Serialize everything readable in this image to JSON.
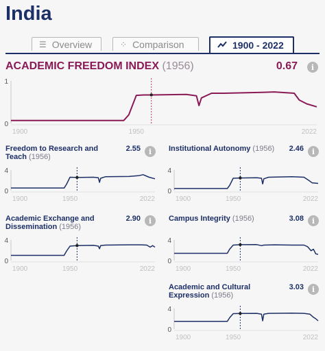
{
  "country": "India",
  "tabs": [
    {
      "label": "Overview",
      "icon": "list-icon"
    },
    {
      "label": "Comparison",
      "icon": "scatter-icon"
    },
    {
      "label": "1900 - 2022",
      "icon": "line-chart-icon"
    }
  ],
  "colors": {
    "main": "#8a1a55",
    "sub": "#1c2f66",
    "marker": "#c0306e"
  },
  "main": {
    "title": "ACADEMIC FREEDOM INDEX",
    "year": "(1956)",
    "value": "0.67",
    "info": "i"
  },
  "subs": [
    {
      "title": "Freedom to Research and Teach",
      "year": "(1956)",
      "value": "2.55",
      "info": "i"
    },
    {
      "title": "Institutional Autonomy",
      "year": "(1956)",
      "value": "2.46",
      "info": "i"
    },
    {
      "title": "Academic Exchange and Dissemination",
      "year": "(1956)",
      "value": "2.90",
      "info": "i"
    },
    {
      "title": "Campus Integrity",
      "year": "(1956)",
      "value": "3.08",
      "info": "i"
    },
    {
      "title": "Academic and Cultural Expression",
      "year": "(1956)",
      "value": "3.03",
      "info": "i"
    }
  ],
  "chart_data": [
    {
      "type": "line",
      "title": "ACADEMIC FREEDOM INDEX (1956)",
      "ylim": [
        0,
        1
      ],
      "yticks": [
        "0",
        "1"
      ],
      "xticks": [
        "1900",
        "1950",
        "2022"
      ],
      "marker_year": 1956,
      "x": [
        1900,
        1945,
        1947,
        1950,
        1953,
        1956,
        1970,
        1974,
        1975,
        1976,
        1980,
        1985,
        2000,
        2005,
        2013,
        2015,
        2018,
        2022
      ],
      "y": [
        0.07,
        0.07,
        0.2,
        0.66,
        0.67,
        0.67,
        0.68,
        0.65,
        0.42,
        0.6,
        0.71,
        0.71,
        0.73,
        0.74,
        0.71,
        0.55,
        0.46,
        0.39
      ]
    },
    {
      "type": "line",
      "title": "Freedom to Research and Teach (1956)",
      "ylim": [
        0,
        4
      ],
      "yticks": [
        "0",
        "4"
      ],
      "xticks": [
        "1900",
        "1950",
        "2022"
      ],
      "marker_year": 1956,
      "x": [
        1900,
        1945,
        1947,
        1950,
        1956,
        1970,
        1974,
        1975,
        1976,
        1980,
        2000,
        2008,
        2012,
        2017,
        2022
      ],
      "y": [
        0.5,
        0.5,
        1.2,
        2.6,
        2.55,
        2.6,
        2.5,
        1.6,
        2.4,
        2.7,
        2.75,
        2.9,
        3.1,
        2.6,
        2.3
      ]
    },
    {
      "type": "line",
      "title": "Institutional Autonomy (1956)",
      "ylim": [
        0,
        4
      ],
      "yticks": [
        "0",
        "4"
      ],
      "xticks": [
        "1900",
        "1950",
        "2022"
      ],
      "marker_year": 1956,
      "x": [
        1900,
        1945,
        1947,
        1950,
        1956,
        1970,
        1974,
        1975,
        1976,
        1980,
        2000,
        2010,
        2014,
        2017,
        2022
      ],
      "y": [
        0.4,
        0.4,
        1.0,
        2.4,
        2.46,
        2.5,
        2.4,
        1.3,
        2.3,
        2.6,
        2.7,
        2.6,
        2.0,
        1.5,
        1.4
      ]
    },
    {
      "type": "line",
      "title": "Academic Exchange and Dissemination (1956)",
      "ylim": [
        0,
        4
      ],
      "yticks": [
        "0",
        "4"
      ],
      "xticks": [
        "1900",
        "1950",
        "2022"
      ],
      "marker_year": 1956,
      "x": [
        1900,
        1945,
        1947,
        1950,
        1956,
        1970,
        1974,
        1975,
        1976,
        1980,
        2000,
        2010,
        2015,
        2018,
        2020,
        2022
      ],
      "y": [
        1.0,
        1.0,
        1.8,
        2.8,
        2.9,
        2.95,
        2.8,
        2.3,
        2.9,
        3.0,
        3.05,
        3.05,
        3.0,
        2.6,
        2.9,
        2.6
      ]
    },
    {
      "type": "line",
      "title": "Campus Integrity (1956)",
      "ylim": [
        0,
        4
      ],
      "yticks": [
        "0",
        "4"
      ],
      "xticks": [
        "1900",
        "1950",
        "2022"
      ],
      "marker_year": 1956,
      "x": [
        1900,
        1945,
        1947,
        1950,
        1956,
        1970,
        1974,
        1976,
        1985,
        2000,
        2010,
        2013,
        2016,
        2018,
        2020,
        2022
      ],
      "y": [
        1.4,
        1.4,
        2.2,
        3.0,
        3.08,
        3.1,
        2.9,
        3.0,
        3.05,
        3.0,
        3.0,
        2.7,
        1.9,
        2.2,
        1.3,
        1.2
      ]
    },
    {
      "type": "line",
      "title": "Academic and Cultural Expression (1956)",
      "ylim": [
        0,
        4
      ],
      "yticks": [
        "0",
        "4"
      ],
      "xticks": [
        "1900",
        "1950",
        "2022"
      ],
      "marker_year": 1956,
      "x": [
        1900,
        1945,
        1947,
        1950,
        1956,
        1970,
        1974,
        1975,
        1976,
        1980,
        2000,
        2010,
        2015,
        2018,
        2020,
        2022
      ],
      "y": [
        1.5,
        1.5,
        2.2,
        3.0,
        3.03,
        3.05,
        2.9,
        1.6,
        2.9,
        3.05,
        3.1,
        3.05,
        2.9,
        2.3,
        2.0,
        1.6
      ]
    }
  ]
}
